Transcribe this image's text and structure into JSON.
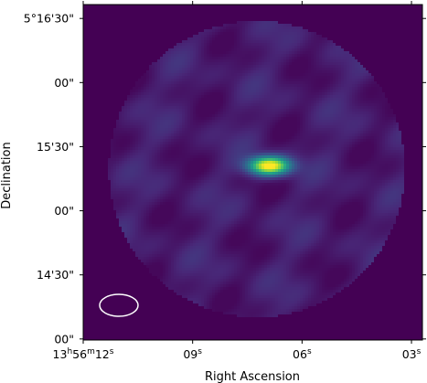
{
  "chart_data": {
    "type": "heatmap",
    "colormap": "viridis",
    "background_color": "#440154",
    "xlabel": "Right Ascension",
    "ylabel": "Declination",
    "x_ticks": [
      {
        "value_s": 12,
        "main": "13",
        "h": "h",
        "mid": "56",
        "m": "m",
        "sec": "12",
        "s": "s"
      },
      {
        "value_s": 9,
        "main": "09",
        "h": "",
        "mid": "",
        "m": "",
        "sec": "",
        "s": "s"
      },
      {
        "value_s": 6,
        "main": "06",
        "h": "",
        "mid": "",
        "m": "",
        "sec": "",
        "s": "s"
      },
      {
        "value_s": 3,
        "main": "03",
        "h": "",
        "mid": "",
        "m": "",
        "sec": "",
        "s": "s"
      }
    ],
    "y_ticks": [
      {
        "value_arcsec": 990,
        "label": "5°16'30\""
      },
      {
        "value_arcsec": 960,
        "label": "00\""
      },
      {
        "value_arcsec": 930,
        "label": "15'30\""
      },
      {
        "value_arcsec": 900,
        "label": "00\""
      },
      {
        "value_arcsec": 870,
        "label": "14'30\""
      },
      {
        "value_arcsec": 840,
        "label": "00\""
      }
    ],
    "ra_range_s": [
      12.0,
      2.7
    ],
    "dec_range_arcsec": [
      839.5,
      996.5
    ],
    "source": {
      "ra_s": 6.9,
      "dec_arcsec": 921,
      "peak_level": 1.0
    },
    "beam": {
      "shape": "ellipse",
      "color": "#ffffff"
    },
    "footprint": "circular"
  }
}
